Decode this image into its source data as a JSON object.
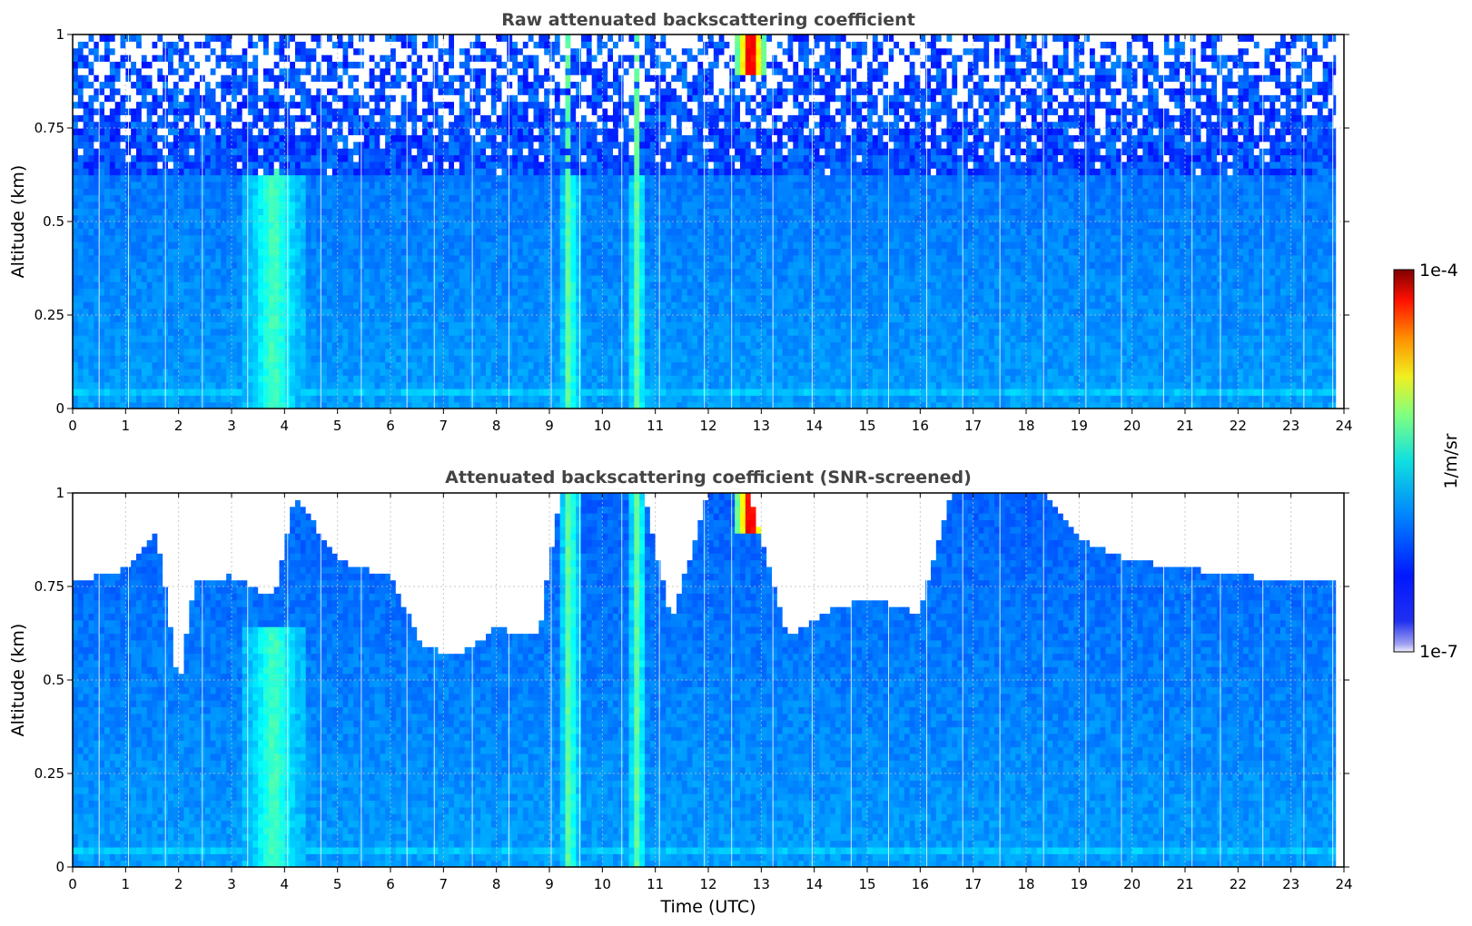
{
  "chart_data": [
    {
      "type": "heatmap",
      "title": "Raw attenuated backscattering coefficient",
      "xlabel": "",
      "ylabel": "Altitude (km)",
      "xlim": [
        0,
        24
      ],
      "ylim": [
        0,
        1
      ],
      "xticks": [
        "0",
        "1",
        "2",
        "3",
        "4",
        "5",
        "6",
        "7",
        "8",
        "9",
        "10",
        "11",
        "12",
        "13",
        "14",
        "15",
        "16",
        "17",
        "18",
        "19",
        "20",
        "21",
        "22",
        "23",
        "24"
      ],
      "yticks": [
        "0",
        "0.25",
        "0.5",
        "0.75",
        "1"
      ],
      "grid": true,
      "screened": false,
      "features": [
        {
          "name": "aerosol layer",
          "time_range": [
            3.2,
            4.4
          ],
          "altitude_top": 0.65,
          "level": 0.45
        },
        {
          "name": "cloud/precip column",
          "time_range": [
            9.2,
            9.55
          ],
          "altitude_top": 1.0,
          "level": 0.5
        },
        {
          "name": "cloud/precip column",
          "time_range": [
            10.55,
            10.8
          ],
          "altitude_top": 1.0,
          "level": 0.52
        },
        {
          "name": "cloud top signal",
          "time_range": [
            12.5,
            13.1
          ],
          "altitude_bottom": 0.9,
          "level": 1.0
        }
      ]
    },
    {
      "type": "heatmap",
      "title": "Attenuated backscattering coefficient (SNR-screened)",
      "xlabel": "Time (UTC)",
      "ylabel": "Altitude (km)",
      "xlim": [
        0,
        24
      ],
      "ylim": [
        0,
        1
      ],
      "xticks": [
        "0",
        "1",
        "2",
        "3",
        "4",
        "5",
        "6",
        "7",
        "8",
        "9",
        "10",
        "11",
        "12",
        "13",
        "14",
        "15",
        "16",
        "17",
        "18",
        "19",
        "20",
        "21",
        "22",
        "23",
        "24"
      ],
      "yticks": [
        "0",
        "0.25",
        "0.5",
        "0.75",
        "1"
      ],
      "grid": true,
      "screened": true,
      "screen_top_km": [
        [
          0,
          0.76
        ],
        [
          1,
          0.8
        ],
        [
          1.6,
          0.9
        ],
        [
          2,
          0.48
        ],
        [
          2.3,
          0.76
        ],
        [
          3,
          0.78
        ],
        [
          3.8,
          0.72
        ],
        [
          4.2,
          1.0
        ],
        [
          5,
          0.82
        ],
        [
          6,
          0.78
        ],
        [
          6.6,
          0.6
        ],
        [
          7.2,
          0.56
        ],
        [
          8,
          0.64
        ],
        [
          8.8,
          0.62
        ],
        [
          9.2,
          1.0
        ],
        [
          10.8,
          1.0
        ],
        [
          11.3,
          0.66
        ],
        [
          12,
          1.0
        ],
        [
          12.8,
          1.0
        ],
        [
          13.5,
          0.62
        ],
        [
          14.2,
          0.68
        ],
        [
          15,
          0.72
        ],
        [
          16,
          0.68
        ],
        [
          16.6,
          1.0
        ],
        [
          18.4,
          1.0
        ],
        [
          19,
          0.88
        ],
        [
          20,
          0.82
        ],
        [
          21,
          0.8
        ],
        [
          22,
          0.78
        ],
        [
          23.8,
          0.76
        ]
      ]
    }
  ],
  "colorbar": {
    "label": "1/m/sr",
    "max_label": "1e-4",
    "min_label": "1e-7",
    "colormap": "jet"
  }
}
